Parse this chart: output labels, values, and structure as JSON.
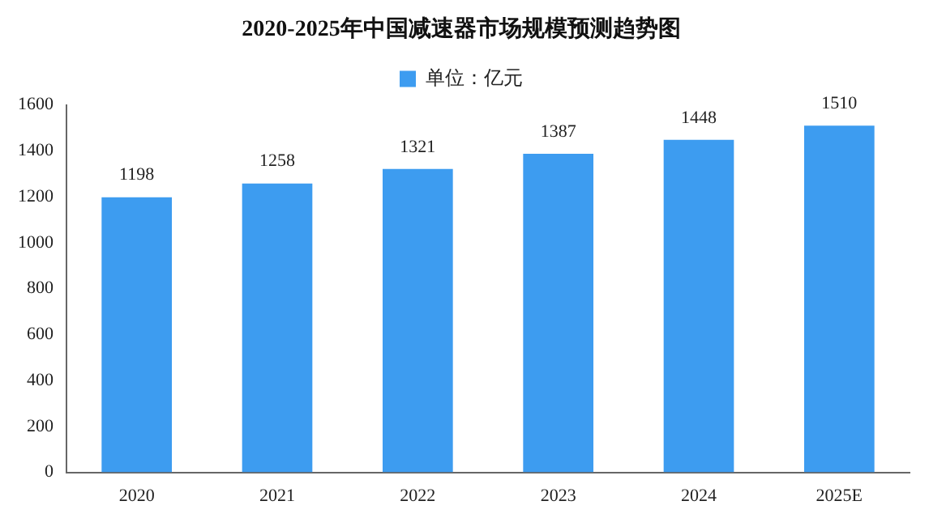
{
  "chart_data": {
    "type": "bar",
    "title": "2020-2025年中国减速器市场规模预测趋势图",
    "categories": [
      "2020",
      "2021",
      "2022",
      "2023",
      "2024",
      "2025E"
    ],
    "series": [
      {
        "name": "单位：亿元",
        "color": "#3d9cf0",
        "values": [
          1198,
          1258,
          1321,
          1387,
          1448,
          1510
        ]
      }
    ],
    "ylim": [
      0,
      1600
    ],
    "yticks": [
      0,
      200,
      400,
      600,
      800,
      1000,
      1200,
      1400,
      1600
    ],
    "data_labels": true,
    "legend": "top"
  }
}
